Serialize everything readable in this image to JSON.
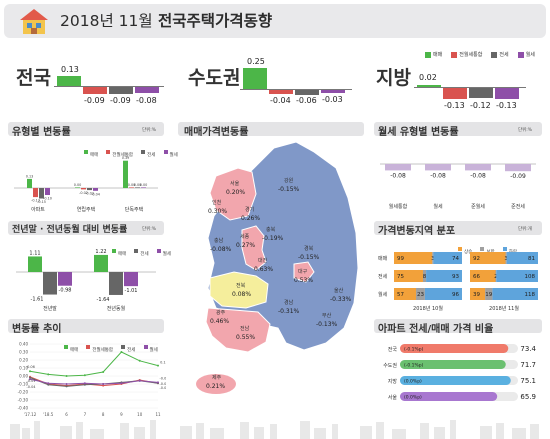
{
  "header": {
    "title_year": "2018년 11월",
    "title_main": "전국주택가격동향"
  },
  "colors": {
    "sale": "#4cb648",
    "jeonse_combined": "#d9534f",
    "jeonse": "#666666",
    "monthly": "#8e4fa8",
    "map_blue": "#8098c8",
    "map_pink": "#f2a6ad",
    "map_yellow": "#f5ee9c"
  },
  "legend_top": [
    "매매",
    "전월세통합",
    "전세",
    "월세"
  ],
  "summary": [
    {
      "label": "전국",
      "values": [
        "0.13",
        "-0.09",
        "-0.09",
        "-0.08"
      ]
    },
    {
      "label": "수도권",
      "values": [
        "0.25",
        "-0.04",
        "-0.06",
        "-0.03"
      ]
    },
    {
      "label": "지방",
      "values": [
        "0.02",
        "-0.13",
        "-0.12",
        "-0.13"
      ]
    }
  ],
  "panels": {
    "type_change": {
      "title": "유형별 변동률",
      "unit": "단위:%",
      "legend": [
        "매매",
        "전월세통합",
        "전세",
        "월세"
      ]
    },
    "eom_yoy": {
      "title": "전년말 · 전년동월 대비 변동률",
      "unit": "단위:%",
      "legend": [
        "매매",
        "전세",
        "월세"
      ]
    },
    "trend": {
      "title": "변동률 추이",
      "legend": [
        "매매",
        "전월세통합",
        "전세",
        "월세"
      ]
    },
    "map": {
      "title": "매매가격변동률"
    },
    "monthly_type": {
      "title": "월세 유형별 변동률",
      "unit": "단위:%"
    },
    "region_dist": {
      "title": "가격변동지역 분포",
      "unit": "단위:개",
      "legend": [
        "상승",
        "보합",
        "하락"
      ]
    },
    "apt_ratio": {
      "title": "아파트 전세/매매 가격 비율"
    }
  },
  "chart_data": [
    {
      "type": "bar",
      "title": "유형별 변동률",
      "categories": [
        "아파트",
        "연립주택",
        "단독주택"
      ],
      "series": [
        {
          "name": "매매",
          "values": [
            0.13,
            0.0,
            0.39
          ]
        },
        {
          "name": "전월세통합",
          "values": [
            -0.13,
            -0.02,
            0.0
          ]
        },
        {
          "name": "전세",
          "values": [
            -0.15,
            -0.03,
            0.0
          ]
        },
        {
          "name": "월세",
          "values": [
            -0.1,
            -0.04,
            0.0
          ]
        }
      ],
      "value_labels": [
        [
          "0.13",
          "-0.13",
          "-0.15",
          "-0.10"
        ],
        [
          "0.00",
          "-0.02",
          "-0.03",
          "-0.04"
        ],
        [
          "0.39",
          "0.00",
          "0.00",
          "0.00"
        ]
      ]
    },
    {
      "type": "bar",
      "title": "전년말 · 전년동월 대비 변동률",
      "categories": [
        "전년말",
        "전년동월"
      ],
      "series": [
        {
          "name": "매매",
          "values": [
            1.11,
            1.22
          ]
        },
        {
          "name": "전세",
          "values": [
            -1.61,
            -1.64
          ]
        },
        {
          "name": "월세",
          "values": [
            -0.98,
            -1.01
          ]
        }
      ]
    },
    {
      "type": "line",
      "title": "변동률 추이",
      "x": [
        "'17.12",
        "'18.5",
        "6",
        "7",
        "8",
        "9",
        "10",
        "11"
      ],
      "ylim": [
        -0.4,
        0.4
      ],
      "yticks": [
        "0.40",
        "0.30",
        "0.20",
        "0.10",
        "0.00",
        "-0.10",
        "-0.20",
        "-0.30",
        "-0.40"
      ],
      "series": [
        {
          "name": "매매",
          "values": [
            0.06,
            0.02,
            0.0,
            0.01,
            0.05,
            0.3,
            0.19,
            0.13
          ]
        },
        {
          "name": "전월세통합",
          "values": [
            -0.01,
            -0.1,
            -0.12,
            -0.1,
            -0.12,
            -0.1,
            -0.05,
            -0.09
          ]
        },
        {
          "name": "전세",
          "values": [
            -0.02,
            -0.11,
            -0.13,
            -0.11,
            -0.1,
            -0.08,
            -0.06,
            -0.09
          ]
        },
        {
          "name": "월세",
          "values": [
            -0.04,
            -0.09,
            -0.1,
            -0.09,
            -0.1,
            -0.09,
            -0.06,
            -0.08
          ]
        }
      ],
      "labels": [
        "0.06",
        "-0.01",
        "-0.04",
        "-0.09",
        "0.13",
        "-0.08",
        "-0.09"
      ]
    },
    {
      "type": "bar",
      "title": "월세 유형별 변동률",
      "categories": [
        "월세통합",
        "월세",
        "준월세",
        "준전세"
      ],
      "values": [
        -0.08,
        -0.08,
        -0.08,
        -0.09
      ]
    },
    {
      "type": "bar",
      "title": "가격변동지역 분포",
      "groups": [
        "2018년 10월",
        "2018년 11월"
      ],
      "rows": [
        "매매",
        "전세",
        "월세"
      ],
      "series": [
        {
          "name": "상승",
          "values": [
            [
              99,
              75,
              57
            ],
            [
              92,
              66,
              39
            ]
          ]
        },
        {
          "name": "보합",
          "values": [
            [
              3,
              8,
              23
            ],
            [
              3,
              2,
              19
            ]
          ]
        },
        {
          "name": "하락",
          "values": [
            [
              74,
              93,
              96
            ],
            [
              81,
              108,
              118
            ]
          ]
        }
      ]
    },
    {
      "type": "bar",
      "title": "아파트 전세/매매 가격 비율",
      "categories": [
        "전국",
        "수도권",
        "지방",
        "서울"
      ],
      "values": [
        73.4,
        71.7,
        75.1,
        65.9
      ],
      "changes": [
        "(-0.1%p)",
        "(-0.1%p)",
        "(0.0%p)",
        "(0.0%p)"
      ],
      "value_labels": [
        "73.4",
        "71.7",
        "75.1",
        "65.9"
      ]
    }
  ],
  "map_regions": [
    {
      "name": "서울",
      "value": "0.20%"
    },
    {
      "name": "인천",
      "value": "0.30%"
    },
    {
      "name": "경기",
      "value": "0.26%"
    },
    {
      "name": "강원",
      "value": "-0.15%"
    },
    {
      "name": "세종",
      "value": "0.27%"
    },
    {
      "name": "충북",
      "value": "-0.19%"
    },
    {
      "name": "충남",
      "value": "-0.08%"
    },
    {
      "name": "대전",
      "value": "0.63%"
    },
    {
      "name": "경북",
      "value": "-0.15%"
    },
    {
      "name": "대구",
      "value": "0.53%"
    },
    {
      "name": "전북",
      "value": "0.08%"
    },
    {
      "name": "울산",
      "value": "-0.33%"
    },
    {
      "name": "경남",
      "value": "-0.31%"
    },
    {
      "name": "부산",
      "value": "-0.13%"
    },
    {
      "name": "광주",
      "value": "0.46%"
    },
    {
      "name": "전남",
      "value": "0.55%"
    },
    {
      "name": "제주",
      "value": "0.21%"
    }
  ]
}
